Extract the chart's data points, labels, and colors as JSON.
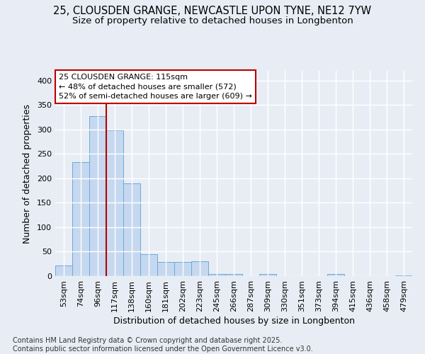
{
  "title_line1": "25, CLOUSDEN GRANGE, NEWCASTLE UPON TYNE, NE12 7YW",
  "title_line2": "Size of property relative to detached houses in Longbenton",
  "xlabel": "Distribution of detached houses by size in Longbenton",
  "ylabel": "Number of detached properties",
  "categories": [
    "53sqm",
    "74sqm",
    "96sqm",
    "117sqm",
    "138sqm",
    "160sqm",
    "181sqm",
    "202sqm",
    "223sqm",
    "245sqm",
    "266sqm",
    "287sqm",
    "309sqm",
    "330sqm",
    "351sqm",
    "373sqm",
    "394sqm",
    "415sqm",
    "436sqm",
    "458sqm",
    "479sqm"
  ],
  "values": [
    22,
    233,
    328,
    299,
    190,
    45,
    29,
    29,
    30,
    5,
    4,
    0,
    4,
    0,
    0,
    0,
    4,
    0,
    0,
    0,
    2
  ],
  "bar_color": "#c5d8f0",
  "bar_edge_color": "#6aaad4",
  "vline_color": "#bb0000",
  "vline_x": 2.5,
  "annotation_line1": "25 CLOUSDEN GRANGE: 115sqm",
  "annotation_line2": "← 48% of detached houses are smaller (572)",
  "annotation_line3": "52% of semi-detached houses are larger (609) →",
  "annotation_box_facecolor": "#ffffff",
  "annotation_box_edgecolor": "#bb0000",
  "ylim": [
    0,
    420
  ],
  "yticks": [
    0,
    50,
    100,
    150,
    200,
    250,
    300,
    350,
    400
  ],
  "bg_color": "#e8edf5",
  "grid_color": "#ffffff",
  "footer_line1": "Contains HM Land Registry data © Crown copyright and database right 2025.",
  "footer_line2": "Contains public sector information licensed under the Open Government Licence v3.0.",
  "title_fontsize": 10.5,
  "subtitle_fontsize": 9.5,
  "tick_fontsize": 8,
  "axis_label_fontsize": 9,
  "annot_fontsize": 8,
  "footer_fontsize": 7
}
